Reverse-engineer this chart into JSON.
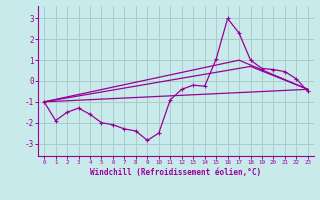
{
  "xlabel": "Windchill (Refroidissement éolien,°C)",
  "background_color": "#c8eaea",
  "line_color": "#990099",
  "grid_color": "#aacccc",
  "x_ticks": [
    0,
    1,
    2,
    3,
    4,
    5,
    6,
    7,
    8,
    9,
    10,
    11,
    12,
    13,
    14,
    15,
    16,
    17,
    18,
    19,
    20,
    21,
    22,
    23
  ],
  "y_ticks": [
    -3,
    -2,
    -1,
    0,
    1,
    2,
    3
  ],
  "xlim": [
    -0.5,
    23.5
  ],
  "ylim": [
    -3.6,
    3.6
  ],
  "series1_x": [
    0,
    1,
    2,
    3,
    4,
    5,
    6,
    7,
    8,
    9,
    10,
    11,
    12,
    13,
    14,
    15,
    16,
    17,
    18,
    19,
    20,
    21,
    22,
    23
  ],
  "series1_y": [
    -1.0,
    -1.9,
    -1.5,
    -1.3,
    -1.6,
    -2.0,
    -2.1,
    -2.3,
    -2.4,
    -2.85,
    -2.5,
    -0.9,
    -0.4,
    -0.2,
    -0.25,
    1.05,
    3.0,
    2.3,
    1.0,
    0.6,
    0.55,
    0.45,
    0.1,
    -0.5
  ],
  "series2_x": [
    0,
    17,
    23
  ],
  "series2_y": [
    -1.0,
    1.0,
    -0.4
  ],
  "series3_x": [
    0,
    18,
    23
  ],
  "series3_y": [
    -1.0,
    0.7,
    -0.4
  ],
  "series4_x": [
    0,
    23
  ],
  "series4_y": [
    -1.0,
    -0.4
  ]
}
